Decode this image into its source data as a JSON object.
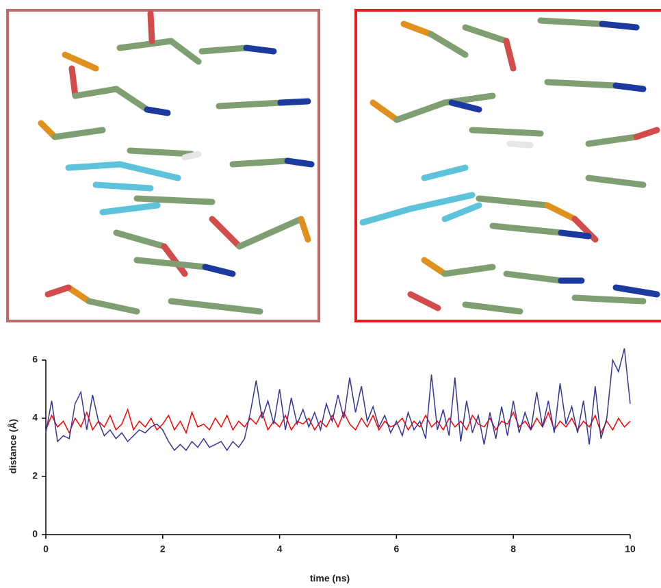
{
  "chart_data": {
    "type": "line",
    "x_label": "time (ns)",
    "y_label": "distance (Å)",
    "x": [
      0,
      0.1,
      0.2,
      0.3,
      0.4,
      0.5,
      0.6,
      0.7,
      0.8,
      0.9,
      1,
      1.1,
      1.2,
      1.3,
      1.4,
      1.5,
      1.6,
      1.7,
      1.8,
      1.9,
      2,
      2.1,
      2.2,
      2.3,
      2.4,
      2.5,
      2.6,
      2.7,
      2.8,
      2.9,
      3,
      3.1,
      3.2,
      3.3,
      3.4,
      3.5,
      3.6,
      3.7,
      3.8,
      3.9,
      4,
      4.1,
      4.2,
      4.3,
      4.4,
      4.5,
      4.6,
      4.7,
      4.8,
      4.9,
      5,
      5.1,
      5.2,
      5.3,
      5.4,
      5.5,
      5.6,
      5.7,
      5.8,
      5.9,
      6,
      6.1,
      6.2,
      6.3,
      6.4,
      6.5,
      6.6,
      6.7,
      6.8,
      6.9,
      7,
      7.1,
      7.2,
      7.3,
      7.4,
      7.5,
      7.6,
      7.7,
      7.8,
      7.9,
      8,
      8.1,
      8.2,
      8.3,
      8.4,
      8.5,
      8.6,
      8.7,
      8.8,
      8.9,
      9,
      9.1,
      9.2,
      9.3,
      9.4,
      9.5,
      9.6,
      9.7,
      9.8,
      9.9,
      10
    ],
    "series": [
      {
        "color": "#ff0000",
        "values": [
          3.6,
          4.1,
          3.7,
          3.9,
          3.5,
          4.0,
          3.7,
          4.2,
          3.6,
          3.9,
          3.7,
          4.1,
          3.6,
          3.8,
          4.3,
          3.6,
          3.9,
          3.7,
          4.0,
          3.6,
          3.8,
          4.1,
          3.6,
          3.9,
          3.5,
          4.2,
          3.7,
          3.8,
          3.6,
          4.0,
          3.7,
          4.1,
          3.6,
          3.9,
          3.7,
          4.0,
          3.8,
          4.2,
          3.6,
          3.9,
          3.7,
          4.1,
          3.6,
          3.9,
          3.8,
          4.0,
          3.6,
          3.9,
          3.7,
          4.1,
          3.7,
          4.2,
          3.8,
          3.6,
          4.0,
          3.7,
          4.1,
          3.6,
          3.9,
          3.7,
          3.8,
          4.0,
          3.6,
          3.9,
          3.7,
          4.1,
          3.7,
          3.9,
          3.6,
          4.0,
          3.7,
          3.9,
          3.6,
          4.1,
          3.8,
          3.7,
          4.0,
          3.6,
          3.9,
          3.8,
          4.2,
          3.7,
          3.9,
          3.6,
          4.0,
          3.7,
          4.2,
          3.6,
          3.9,
          3.7,
          4.0,
          3.6,
          3.9,
          3.7,
          4.1,
          3.5,
          3.9,
          3.6,
          4.0,
          3.7,
          3.9
        ]
      },
      {
        "color": "#333399",
        "values": [
          3.5,
          4.6,
          3.2,
          3.4,
          3.3,
          4.5,
          4.9,
          3.6,
          4.8,
          3.9,
          3.4,
          3.6,
          3.3,
          3.5,
          3.2,
          3.4,
          3.6,
          3.5,
          3.7,
          3.8,
          3.6,
          3.2,
          2.9,
          3.1,
          2.9,
          3.2,
          3.0,
          3.3,
          3.0,
          3.1,
          3.2,
          2.9,
          3.2,
          3.0,
          3.3,
          4.2,
          5.3,
          4.0,
          4.6,
          3.8,
          5.0,
          3.6,
          4.7,
          3.8,
          4.3,
          3.7,
          4.2,
          3.6,
          4.5,
          3.9,
          4.8,
          4.0,
          5.4,
          4.2,
          5.1,
          3.9,
          4.4,
          3.7,
          4.1,
          3.5,
          3.9,
          3.4,
          4.2,
          3.6,
          3.9,
          3.3,
          5.5,
          3.6,
          4.3,
          3.4,
          5.4,
          3.2,
          4.6,
          3.5,
          4.1,
          3.1,
          4.2,
          3.3,
          4.4,
          3.4,
          4.6,
          3.5,
          4.2,
          3.6,
          4.9,
          3.7,
          4.6,
          3.5,
          5.2,
          3.8,
          4.4,
          3.5,
          4.6,
          3.1,
          5.1,
          3.3,
          4.0,
          6.0,
          5.6,
          6.4,
          4.5
        ]
      }
    ],
    "xlim": [
      0,
      10
    ],
    "xticks": [
      0,
      2,
      4,
      6,
      8,
      10
    ],
    "ylim": [
      0,
      6
    ],
    "yticks": [
      0,
      2,
      4,
      6
    ]
  }
}
